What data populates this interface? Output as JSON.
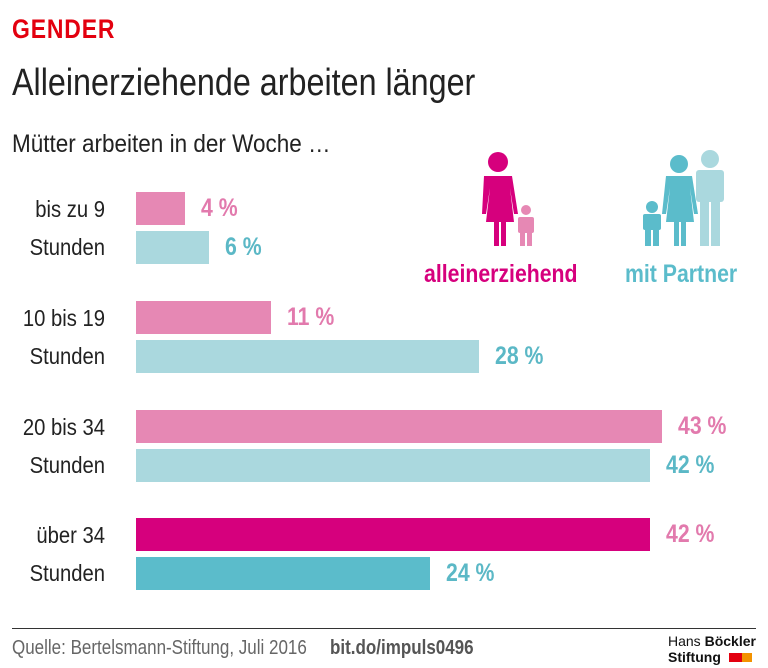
{
  "kicker": "GENDER",
  "title": "Alleinerziehende arbeiten länger",
  "subtitle": "Mütter arbeiten in der Woche …",
  "legend": [
    {
      "label": "alleinerziehend",
      "color": "#d6007d"
    },
    {
      "label": "mit Partner",
      "color": "#5bbccb"
    }
  ],
  "chart_data": {
    "type": "bar",
    "orientation": "horizontal",
    "categories": [
      [
        "bis zu 9",
        "Stunden"
      ],
      [
        "10 bis 19",
        "Stunden"
      ],
      [
        "20 bis 34",
        "Stunden"
      ],
      [
        "über 34",
        "Stunden"
      ]
    ],
    "series": [
      {
        "name": "alleinerziehend",
        "values": [
          4,
          11,
          43,
          42
        ],
        "labels": [
          "4 %",
          "11 %",
          "43 %",
          "42 %"
        ]
      },
      {
        "name": "mit Partner",
        "values": [
          6,
          28,
          42,
          24
        ],
        "labels": [
          "6 %",
          "28 %",
          "42 %",
          "24 %"
        ]
      }
    ],
    "unit": "%",
    "xlim": [
      0,
      43
    ],
    "colors": {
      "light_pink": "#e688b4",
      "dark_pink": "#d6007d",
      "light_teal": "#aad8de",
      "dark_teal": "#5bbccb",
      "pink_label": "#e27aad",
      "teal_label": "#5bb8c6"
    }
  },
  "footer": {
    "source": "Quelle: Bertelsmann-Stiftung, Juli 2016",
    "link": "bit.do/impuls0496",
    "logo_line1_a": "Hans",
    "logo_line1_b": "Böckler",
    "logo_line2": "Stiftung"
  }
}
